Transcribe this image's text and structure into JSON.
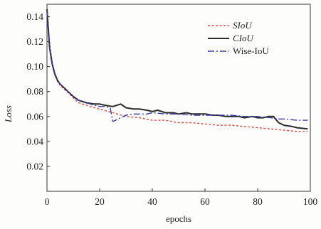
{
  "chart_data": {
    "type": "line",
    "title": "",
    "xlabel": "epochs",
    "ylabel": "Loss",
    "xlim": [
      0,
      100
    ],
    "ylim": [
      0,
      0.15
    ],
    "xticks": [
      0,
      20,
      40,
      60,
      80,
      100
    ],
    "yticks": [
      0.02,
      0.04,
      0.06,
      0.08,
      0.1,
      0.12,
      0.14
    ],
    "ytick_labels": [
      "0.02",
      "0.04",
      "0.06",
      "0.08",
      "0.10",
      "0.12",
      "0.14"
    ],
    "grid": false,
    "legend": "top-right",
    "series": [
      {
        "name": "SIoU",
        "color": "#d9473f",
        "style": "dotted",
        "x": [
          0,
          1,
          2,
          3,
          4,
          5,
          6,
          8,
          10,
          12,
          15,
          18,
          20,
          25,
          30,
          35,
          40,
          45,
          50,
          55,
          60,
          65,
          70,
          75,
          80,
          85,
          90,
          95,
          99
        ],
        "y": [
          0.148,
          0.118,
          0.103,
          0.094,
          0.088,
          0.085,
          0.083,
          0.079,
          0.075,
          0.071,
          0.069,
          0.067,
          0.066,
          0.063,
          0.06,
          0.059,
          0.057,
          0.057,
          0.055,
          0.055,
          0.054,
          0.053,
          0.053,
          0.052,
          0.051,
          0.05,
          0.049,
          0.048,
          0.048
        ]
      },
      {
        "name": "CIoU",
        "color": "#2a2a2a",
        "style": "solid",
        "x": [
          0,
          1,
          2,
          3,
          4,
          5,
          6,
          8,
          10,
          12,
          15,
          18,
          20,
          22,
          25,
          28,
          30,
          33,
          35,
          38,
          40,
          42,
          45,
          48,
          50,
          53,
          55,
          58,
          60,
          63,
          65,
          68,
          70,
          73,
          75,
          78,
          80,
          82,
          84,
          86,
          88,
          90,
          93,
          95,
          99
        ],
        "y": [
          0.146,
          0.115,
          0.102,
          0.094,
          0.089,
          0.086,
          0.084,
          0.08,
          0.076,
          0.073,
          0.071,
          0.07,
          0.07,
          0.069,
          0.068,
          0.07,
          0.067,
          0.066,
          0.066,
          0.065,
          0.064,
          0.065,
          0.063,
          0.063,
          0.062,
          0.063,
          0.062,
          0.062,
          0.062,
          0.061,
          0.061,
          0.06,
          0.06,
          0.06,
          0.059,
          0.06,
          0.059,
          0.059,
          0.06,
          0.06,
          0.055,
          0.053,
          0.052,
          0.051,
          0.05
        ]
      },
      {
        "name": "Wise-IoU",
        "color": "#3a3aa8",
        "style": "dashdot",
        "x": [
          0,
          1,
          2,
          3,
          4,
          5,
          6,
          8,
          10,
          12,
          15,
          18,
          20,
          22,
          24,
          25,
          26,
          28,
          30,
          33,
          35,
          38,
          40,
          45,
          50,
          55,
          60,
          65,
          70,
          75,
          80,
          85,
          88,
          90,
          95,
          99
        ],
        "y": [
          0.145,
          0.114,
          0.101,
          0.093,
          0.089,
          0.086,
          0.084,
          0.08,
          0.076,
          0.073,
          0.071,
          0.069,
          0.068,
          0.068,
          0.067,
          0.056,
          0.057,
          0.059,
          0.061,
          0.062,
          0.062,
          0.062,
          0.063,
          0.062,
          0.062,
          0.061,
          0.061,
          0.061,
          0.061,
          0.06,
          0.06,
          0.059,
          0.058,
          0.058,
          0.057,
          0.057
        ]
      }
    ]
  }
}
